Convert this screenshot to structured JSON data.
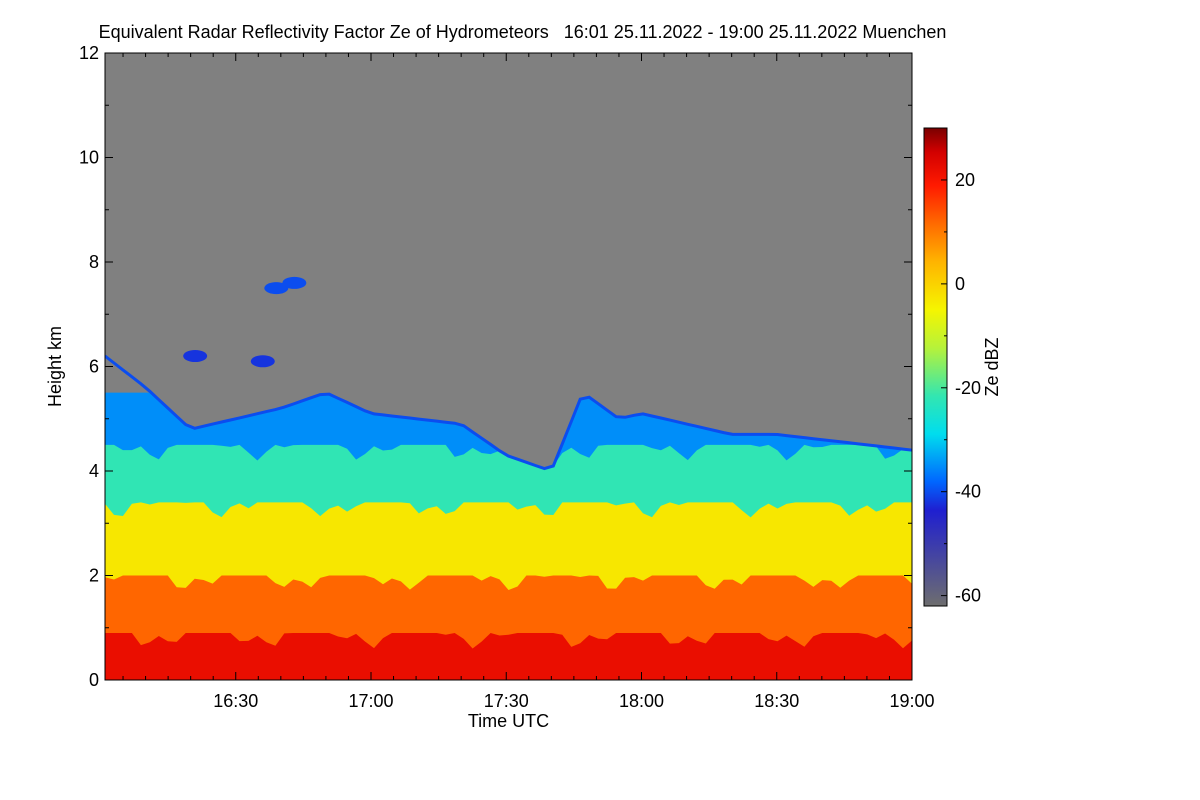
{
  "chart_data": {
    "type": "heatmap",
    "title": "Equivalent Radar Reflectivity Factor Ze of Hydrometeors   16:01 25.11.2022 - 19:00 25.11.2022 Muenchen",
    "xlabel": "Time UTC",
    "ylabel": "Height km",
    "xlim": [
      "16:01",
      "19:00"
    ],
    "ylim": [
      0,
      12
    ],
    "x_ticks": [
      "16:30",
      "17:00",
      "17:30",
      "18:00",
      "18:30",
      "19:00"
    ],
    "y_ticks": [
      0,
      2,
      4,
      6,
      8,
      10,
      12
    ],
    "colorbar": {
      "label": "Ze dBZ",
      "range": [
        -62,
        30
      ],
      "ticks": [
        20,
        0,
        -20,
        -40,
        -60
      ],
      "colors": [
        "#6e6e6e",
        "#1f1fd0",
        "#0066ff",
        "#00ddee",
        "#33e6b0",
        "#b6f23a",
        "#f5f500",
        "#ffb400",
        "#ff6a00",
        "#ff1a00",
        "#d20000",
        "#7a0000"
      ],
      "color_stops": [
        0.0,
        0.2,
        0.26,
        0.36,
        0.44,
        0.54,
        0.62,
        0.72,
        0.8,
        0.88,
        0.95,
        1.0
      ]
    },
    "no_echo_color": "#808080",
    "echo_top_km": [
      [
        "16:01",
        6.2
      ],
      [
        "16:10",
        5.6
      ],
      [
        "16:20",
        4.8
      ],
      [
        "16:30",
        5.0
      ],
      [
        "16:40",
        5.2
      ],
      [
        "16:50",
        5.5
      ],
      [
        "17:00",
        5.1
      ],
      [
        "17:10",
        5.0
      ],
      [
        "17:20",
        4.9
      ],
      [
        "17:30",
        4.3
      ],
      [
        "17:40",
        4.0
      ],
      [
        "17:47",
        5.5
      ],
      [
        "17:55",
        5.0
      ],
      [
        "18:00",
        5.1
      ],
      [
        "18:10",
        4.9
      ],
      [
        "18:20",
        4.7
      ],
      [
        "18:30",
        4.7
      ],
      [
        "18:40",
        4.6
      ],
      [
        "18:50",
        4.5
      ],
      [
        "19:00",
        4.4
      ]
    ],
    "layers": [
      {
        "range_km": [
          0.0,
          0.9
        ],
        "ze_dbz": 22
      },
      {
        "range_km": [
          0.9,
          2.0
        ],
        "ze_dbz": 12
      },
      {
        "range_km": [
          2.0,
          3.4
        ],
        "ze_dbz": -3
      },
      {
        "range_km": [
          3.4,
          4.5
        ],
        "ze_dbz": -22
      },
      {
        "range_km": [
          4.5,
          5.5
        ],
        "ze_dbz": -35
      }
    ],
    "isolated_echoes": [
      {
        "time": "16:36",
        "height_km": 6.1,
        "ze_dbz": -42
      },
      {
        "time": "16:39",
        "height_km": 7.5,
        "ze_dbz": -40
      },
      {
        "time": "16:43",
        "height_km": 7.6,
        "ze_dbz": -40
      },
      {
        "time": "16:21",
        "height_km": 6.2,
        "ze_dbz": -42
      }
    ]
  }
}
